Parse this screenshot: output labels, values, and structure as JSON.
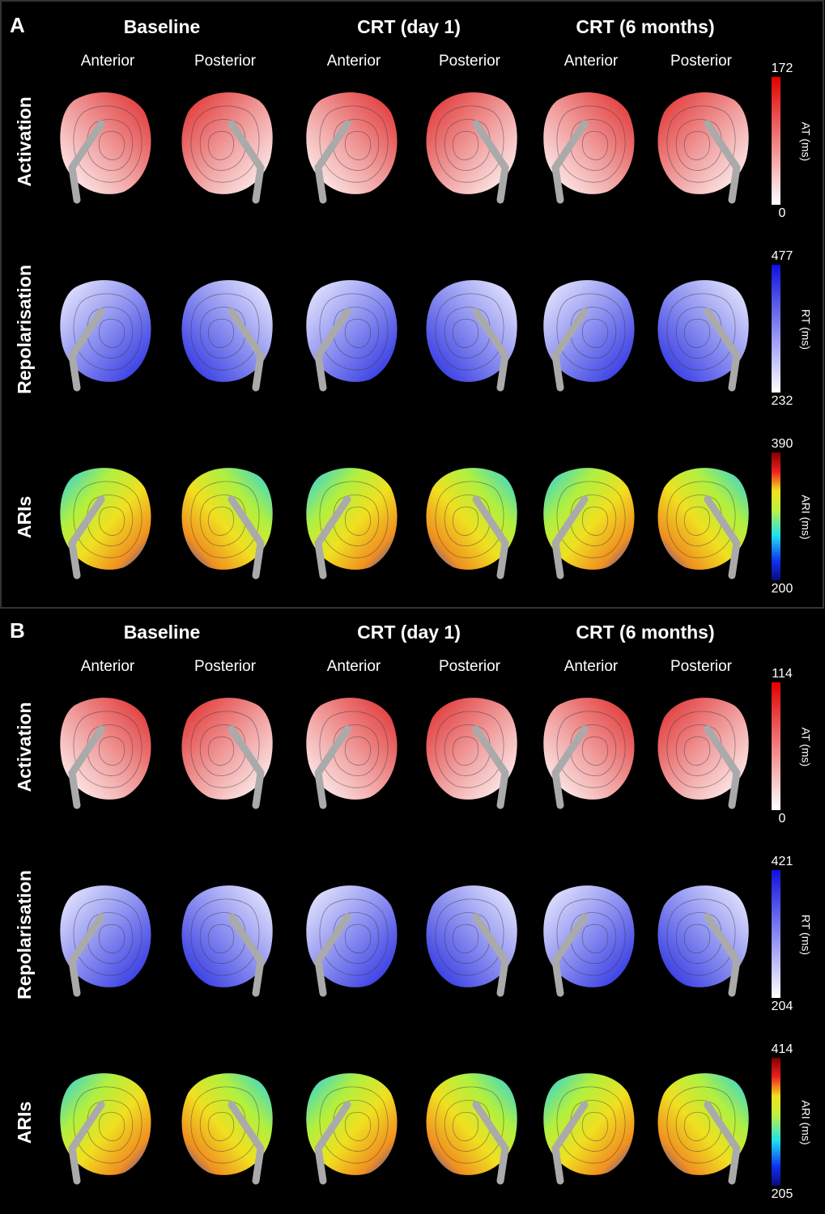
{
  "panels": [
    {
      "label": "A",
      "columns": [
        "Baseline",
        "CRT (day 1)",
        "CRT (6 months)"
      ],
      "views": [
        "Anterior",
        "Posterior",
        "Anterior",
        "Posterior",
        "Anterior",
        "Posterior"
      ],
      "rows": [
        {
          "name": "Activation",
          "colorbar": {
            "max": 172,
            "min": 0,
            "label": "AT (ms)"
          }
        },
        {
          "name": "Repolarisation",
          "colorbar": {
            "max": 477,
            "min": 232,
            "label": "RT (ms)"
          }
        },
        {
          "name": "ARIs",
          "colorbar": {
            "max": 390,
            "min": 200,
            "label": "ARI (ms)"
          }
        }
      ]
    },
    {
      "label": "B",
      "columns": [
        "Baseline",
        "CRT (day 1)",
        "CRT (6 months)"
      ],
      "views": [
        "Anterior",
        "Posterior",
        "Anterior",
        "Posterior",
        "Anterior",
        "Posterior"
      ],
      "rows": [
        {
          "name": "Activation",
          "colorbar": {
            "max": 114,
            "min": 0,
            "label": "AT (ms)"
          }
        },
        {
          "name": "Repolarisation",
          "colorbar": {
            "max": 421,
            "min": 204,
            "label": "RT (ms)"
          }
        },
        {
          "name": "ARIs",
          "colorbar": {
            "max": 414,
            "min": 205,
            "label": "ARI (ms)"
          }
        }
      ]
    }
  ]
}
